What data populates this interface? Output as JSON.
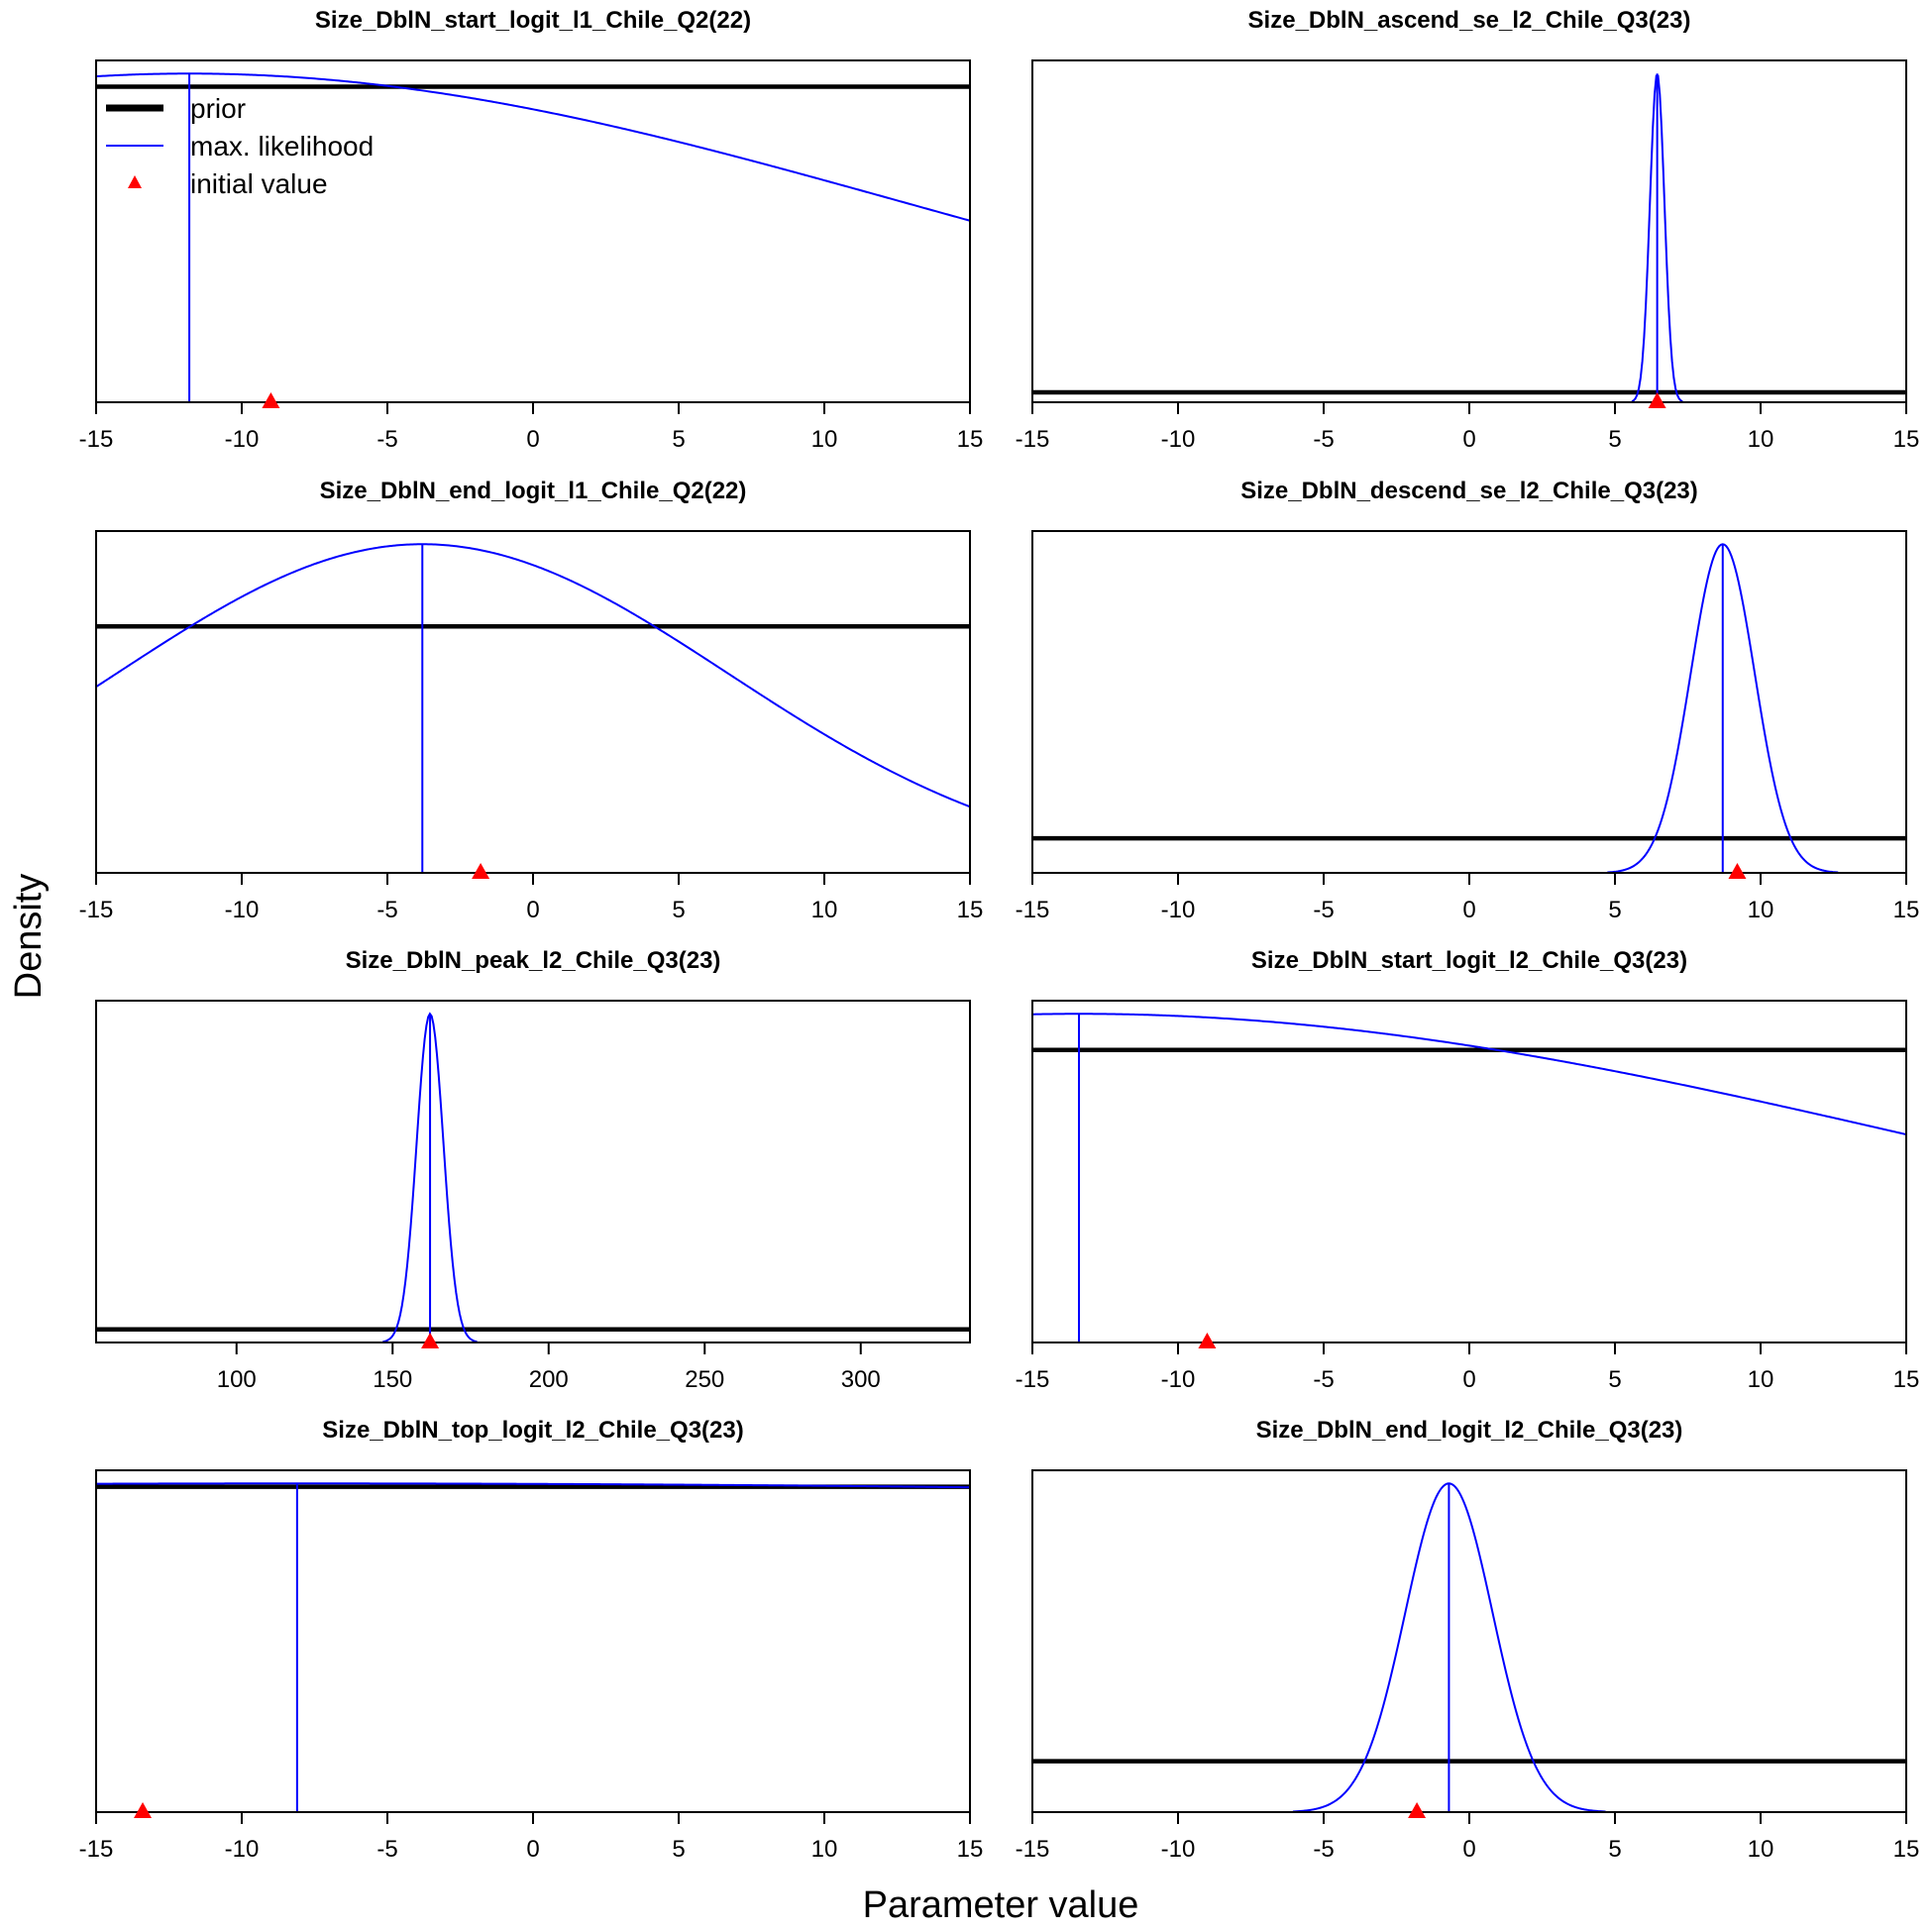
{
  "figure": {
    "xlabel": "Parameter value",
    "ylabel": "Density"
  },
  "legend": {
    "panel_index": 0,
    "items": [
      {
        "label": "prior",
        "kind": "line",
        "color": "#000000"
      },
      {
        "label": "max. likelihood",
        "kind": "line",
        "color": "#0000ff"
      },
      {
        "label": "initial value",
        "kind": "triangle",
        "color": "#ff0000"
      }
    ]
  },
  "colors": {
    "prior": "#000000",
    "likelihood": "#0000ff",
    "initial": "#ff0000"
  },
  "chart_data": [
    {
      "type": "line",
      "title": "Size_DblN_start_logit_l1_Chile_Q2(22)",
      "xlim": [
        -15,
        15
      ],
      "xticks": [
        -15,
        -10,
        -5,
        0,
        5,
        10,
        15
      ],
      "ylim": [
        0,
        1.04
      ],
      "prior_level": 0.96,
      "likelihood": {
        "shape": "gaussian",
        "center": -11.8,
        "sd": 24.6,
        "peak": 1.0
      },
      "mle": -11.8,
      "initial_value": -9.0
    },
    {
      "type": "line",
      "title": "Size_DblN_ascend_se_l2_Chile_Q3(23)",
      "xlim": [
        -15,
        15
      ],
      "xticks": [
        -15,
        -10,
        -5,
        0,
        5,
        10,
        15
      ],
      "ylim": [
        0,
        1.04
      ],
      "prior_level": 0.03,
      "likelihood": {
        "shape": "gaussian",
        "center": 6.45,
        "sd": 0.25,
        "peak": 1.0
      },
      "mle": 6.45,
      "initial_value": 6.45
    },
    {
      "type": "line",
      "title": "Size_DblN_end_logit_l1_Chile_Q2(22)",
      "xlim": [
        -15,
        15
      ],
      "xticks": [
        -15,
        -10,
        -5,
        0,
        5,
        10,
        15
      ],
      "ylim": [
        0,
        1.04
      ],
      "prior_level": 0.75,
      "likelihood": {
        "shape": "gaussian",
        "center": -3.8,
        "sd": 10.5,
        "peak": 1.0
      },
      "mle": -3.8,
      "initial_value": -1.8
    },
    {
      "type": "line",
      "title": "Size_DblN_descend_se_l2_Chile_Q3(23)",
      "xlim": [
        -15,
        15
      ],
      "xticks": [
        -15,
        -10,
        -5,
        0,
        5,
        10,
        15
      ],
      "ylim": [
        0,
        1.04
      ],
      "prior_level": 0.105,
      "likelihood": {
        "shape": "gaussian",
        "center": 8.7,
        "sd": 1.1,
        "peak": 1.0
      },
      "mle": 8.7,
      "initial_value": 9.2
    },
    {
      "type": "line",
      "title": "Size_DblN_peak_l2_Chile_Q3(23)",
      "xlim": [
        55,
        335
      ],
      "xticks": [
        100,
        150,
        200,
        250,
        300
      ],
      "ylim": [
        0,
        1.04
      ],
      "prior_level": 0.04,
      "likelihood": {
        "shape": "gaussian",
        "center": 162,
        "sd": 4.3,
        "peak": 1.0
      },
      "mle": 162,
      "initial_value": 162
    },
    {
      "type": "line",
      "title": "Size_DblN_start_logit_l2_Chile_Q3(23)",
      "xlim": [
        -15,
        15
      ],
      "xticks": [
        -15,
        -10,
        -5,
        0,
        5,
        10,
        15
      ],
      "ylim": [
        0,
        1.04
      ],
      "prior_level": 0.89,
      "likelihood": {
        "shape": "gaussian",
        "center": -13.4,
        "sd": 29.7,
        "peak": 1.0
      },
      "mle": -13.4,
      "initial_value": -9.0
    },
    {
      "type": "line",
      "title": "Size_DblN_top_logit_l2_Chile_Q3(23)",
      "xlim": [
        -15,
        15
      ],
      "xticks": [
        -15,
        -10,
        -5,
        0,
        5,
        10,
        15
      ],
      "ylim": [
        0,
        1.04
      ],
      "prior_level": 0.99,
      "likelihood": {
        "shape": "gaussian",
        "center": -8.1,
        "sd": 150,
        "peak": 1.0
      },
      "mle": -8.1,
      "initial_value": -13.4
    },
    {
      "type": "line",
      "title": "Size_DblN_end_logit_l2_Chile_Q3(23)",
      "xlim": [
        -15,
        15
      ],
      "xticks": [
        -15,
        -10,
        -5,
        0,
        5,
        10,
        15
      ],
      "ylim": [
        0,
        1.04
      ],
      "prior_level": 0.155,
      "likelihood": {
        "shape": "gaussian",
        "center": -0.7,
        "sd": 1.5,
        "peak": 1.0
      },
      "mle": -0.7,
      "initial_value": -1.8
    }
  ]
}
